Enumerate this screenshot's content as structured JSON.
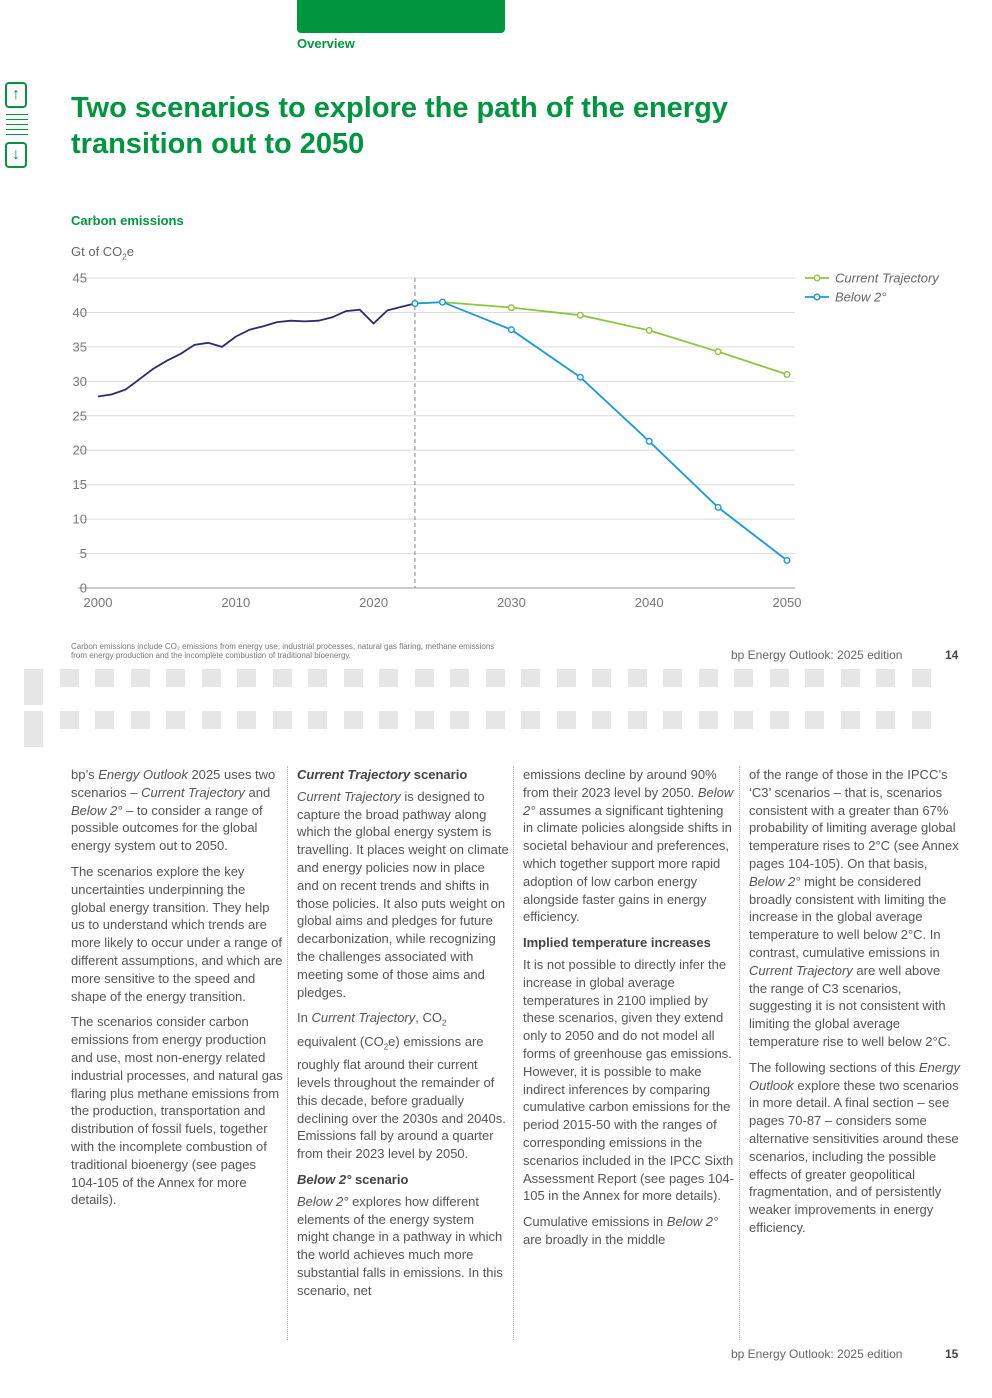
{
  "header": {
    "section": "Overview"
  },
  "nav": {
    "up_icon": "arrow-up-icon",
    "menu_icon": "menu-lines-icon",
    "down_icon": "arrow-down-icon",
    "up": "↑",
    "down": "↓"
  },
  "page_title": "Two scenarios to explore the path of the energy transition out to 2050",
  "chart_heading": "Carbon emissions",
  "y_unit": {
    "main": "Gt of CO",
    "sub": "2",
    "suffix": "e"
  },
  "colors": {
    "brand_green": "#009640",
    "history": "#2d2a6e",
    "current_trajectory": "#8cc63f",
    "below_2": "#1a9ad6"
  },
  "chart_data": {
    "type": "line",
    "title": "Carbon emissions",
    "ylabel": "Gt of CO2e",
    "xlim": [
      2000,
      2050
    ],
    "ylim": [
      0,
      45
    ],
    "x_ticks": [
      "2000",
      "2010",
      "2020",
      "2030",
      "2040",
      "2050"
    ],
    "y_ticks": [
      "0",
      "5",
      "10",
      "15",
      "20",
      "25",
      "30",
      "35",
      "40",
      "45"
    ],
    "grid": true,
    "legend_position": "top-right",
    "divider_year": 2023,
    "series": [
      {
        "key": "history",
        "x": [
          2000,
          2001,
          2002,
          2003,
          2004,
          2005,
          2006,
          2007,
          2008,
          2009,
          2010,
          2011,
          2012,
          2013,
          2014,
          2015,
          2016,
          2017,
          2018,
          2019,
          2020,
          2021,
          2022,
          2023
        ],
        "y": [
          27.8,
          28.1,
          28.8,
          30.3,
          31.8,
          33.0,
          34.0,
          35.3,
          35.6,
          35.0,
          36.5,
          37.5,
          38.0,
          38.6,
          38.8,
          38.7,
          38.8,
          39.3,
          40.2,
          40.4,
          38.4,
          40.3,
          40.8,
          41.3
        ]
      },
      {
        "key": "current_trajectory",
        "name": "Current Trajectory",
        "x": [
          2023,
          2025,
          2030,
          2035,
          2040,
          2045,
          2050
        ],
        "y": [
          41.3,
          41.5,
          40.7,
          39.6,
          37.4,
          34.3,
          31.0
        ]
      },
      {
        "key": "below_2",
        "name": "Below 2°",
        "x": [
          2023,
          2025,
          2030,
          2035,
          2040,
          2045,
          2050
        ],
        "y": [
          41.3,
          41.5,
          37.5,
          30.6,
          21.3,
          11.7,
          4.0
        ]
      }
    ]
  },
  "footnote": "Carbon emissions include CO₂ emissions from energy use, industrial processes, natural gas flaring, methane emissions from energy production and the incomplete combustion of traditional bioenergy.",
  "footer": {
    "publication": "bp Energy Outlook: 2025 edition",
    "page_top": "14",
    "page_bottom": "15"
  }
}
